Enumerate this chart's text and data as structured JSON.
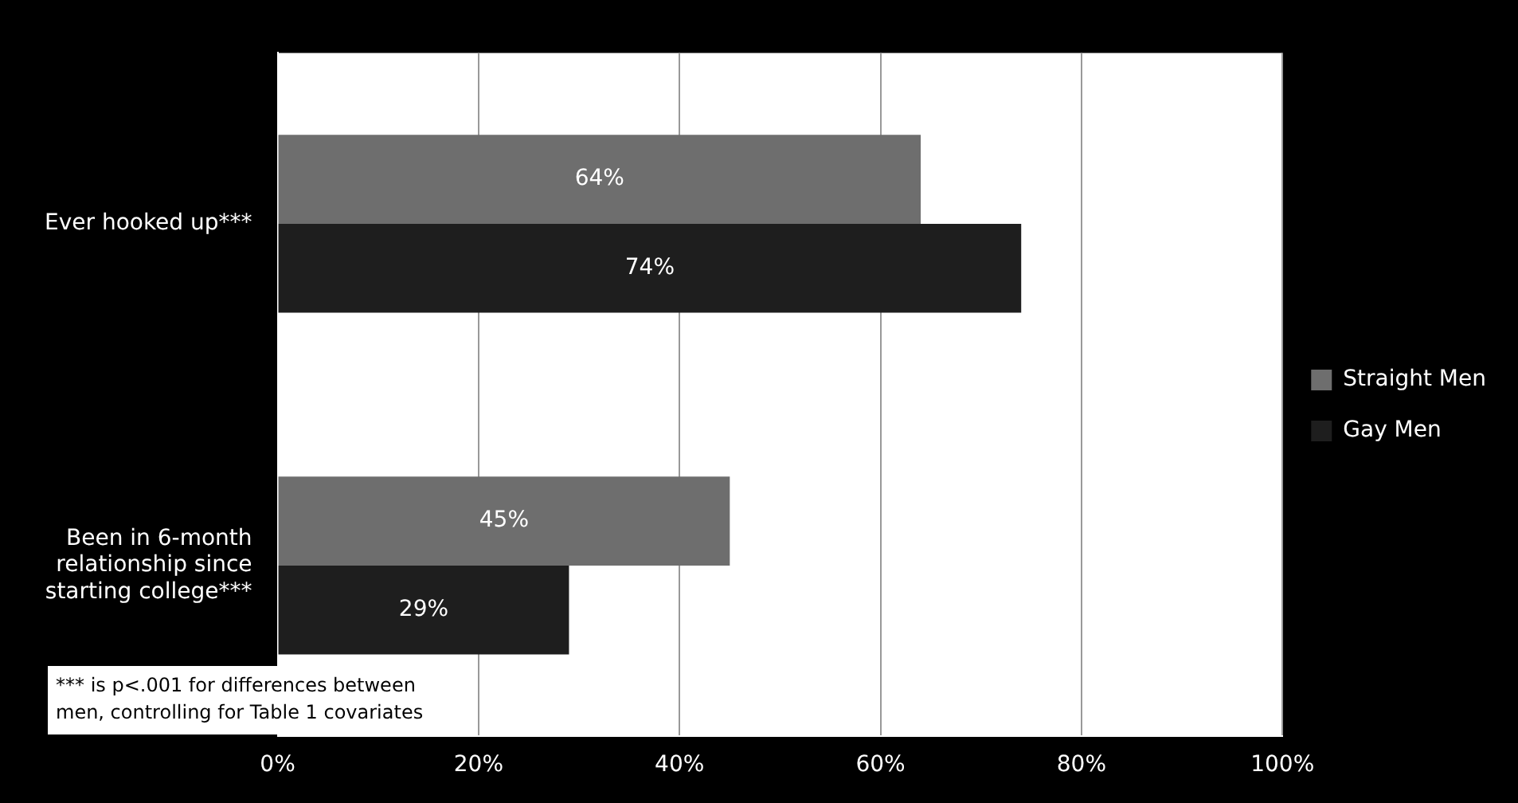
{
  "chart_data": {
    "type": "bar",
    "orientation": "horizontal",
    "categories": [
      "Ever hooked up***",
      "Been in 6-month relationship since starting college***"
    ],
    "series": [
      {
        "name": "Straight Men",
        "color": "#6e6e6e",
        "values": [
          64,
          45
        ],
        "value_labels": [
          "64%",
          "45%"
        ]
      },
      {
        "name": "Gay Men",
        "color": "#1e1e1e",
        "values": [
          74,
          29
        ],
        "value_labels": [
          "74%",
          "29%"
        ]
      }
    ],
    "xlim": [
      0,
      100
    ],
    "xticks": [
      {
        "value": 0,
        "label": "0%"
      },
      {
        "value": 20,
        "label": "20%"
      },
      {
        "value": 40,
        "label": "40%"
      },
      {
        "value": 60,
        "label": "60%"
      },
      {
        "value": 80,
        "label": "80%"
      },
      {
        "value": 100,
        "label": "100%"
      }
    ],
    "grid": "x",
    "legend": "right",
    "annotations": [
      "*** is p<.001 for differences between men, controlling for Table 1 covariates"
    ]
  }
}
